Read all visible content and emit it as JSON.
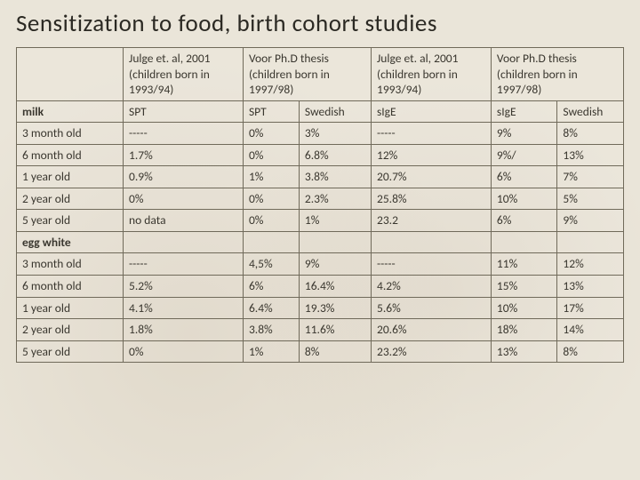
{
  "title": "Sensitization to food, birth cohort studies",
  "headers": {
    "c1": "Julge et. al, 2001 (children born in 1993/94)",
    "c2": "Voor Ph.D thesis (children born in 1997/98)",
    "c3": "Julge et. al, 2001 (children born in 1993/94)",
    "c4": "Voor Ph.D thesis (children born in 1997/98)"
  },
  "sub": {
    "spt1": "SPT",
    "spt2": "SPT",
    "swedish1": "Swedish",
    "sige1": "sIgE",
    "sige2": "sIgE",
    "swedish2": "Swedish"
  },
  "sections": {
    "milk": "milk",
    "egg": "egg white"
  },
  "milk": [
    {
      "age": "3 month old",
      "a": "-----",
      "b": "0%",
      "c": "3%",
      "d": "-----",
      "e": "9%",
      "f": "8%"
    },
    {
      "age": "6 month old",
      "a": "1.7%",
      "b": "0%",
      "c": "6.8%",
      "d": "12%",
      "e": "9%/",
      "f": "13%"
    },
    {
      "age": "1 year old",
      "a": "0.9%",
      "b": "1%",
      "c": "3.8%",
      "d": "20.7%",
      "e": "6%",
      "f": "7%"
    },
    {
      "age": "2 year old",
      "a": "0%",
      "b": "0%",
      "c": "2.3%",
      "d": "25.8%",
      "e": "10%",
      "f": "5%"
    },
    {
      "age": "5 year old",
      "a": "no data",
      "b": "0%",
      "c": "1%",
      "d": "23.2",
      "e": "6%",
      "f": "9%"
    }
  ],
  "egg": [
    {
      "age": "3 month old",
      "a": "-----",
      "b": "4,5%",
      "c": "9%",
      "d": "-----",
      "e": "11%",
      "f": "12%"
    },
    {
      "age": "6 month old",
      "a": "5.2%",
      "b": "6%",
      "c": "16.4%",
      "d": "4.2%",
      "e": "15%",
      "f": "13%"
    },
    {
      "age": "1 year old",
      "a": "4.1%",
      "b": "6.4%",
      "c": "19.3%",
      "d": "5.6%",
      "e": "10%",
      "f": "17%"
    },
    {
      "age": "2 year old",
      "a": "1.8%",
      "b": "3.8%",
      "c": "11.6%",
      "d": "20.6%",
      "e": "18%",
      "f": "14%"
    },
    {
      "age": "5 year old",
      "a": "0%",
      "b": "1%",
      "c": "8%",
      "d": "23.2%",
      "e": "13%",
      "f": "8%"
    }
  ]
}
